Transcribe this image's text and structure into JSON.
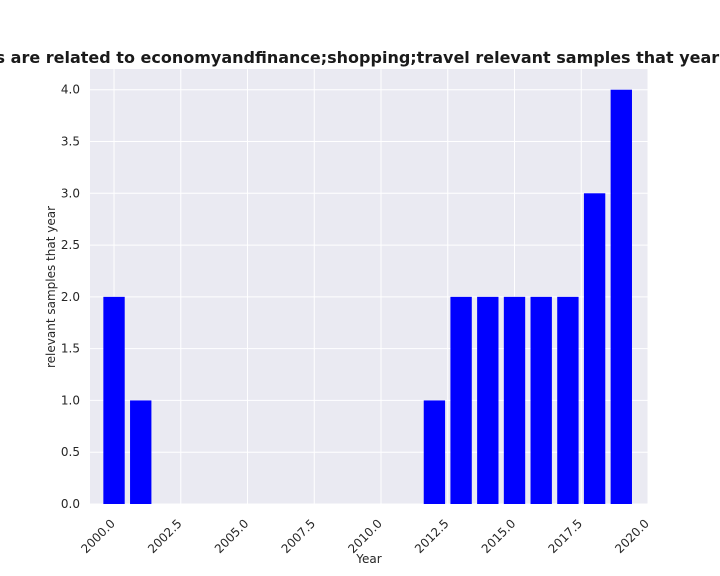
{
  "chart_data": {
    "type": "bar",
    "title": "Categories are related to economyandfinance;shopping;travel relevant samples that year in privacy p",
    "xlabel": "Year",
    "ylabel": "relevant samples that year",
    "x": [
      2000,
      2001,
      2012,
      2013,
      2014,
      2015,
      2016,
      2017,
      2018,
      2019
    ],
    "values": [
      2,
      1,
      1,
      2,
      2,
      2,
      2,
      2,
      3,
      4
    ],
    "xlim": [
      1999.1,
      2020.0
    ],
    "ylim": [
      0,
      4.2
    ],
    "xticks": [
      "2000.0",
      "2002.5",
      "2005.0",
      "2007.5",
      "2010.0",
      "2012.5",
      "2015.0",
      "2017.5",
      "2020.0"
    ],
    "yticks": [
      "0.0",
      "0.5",
      "1.0",
      "1.5",
      "2.0",
      "2.5",
      "3.0",
      "3.5",
      "4.0"
    ],
    "grid": true,
    "bar_color": "#0000ff",
    "background_color": "#eaeaf2"
  }
}
